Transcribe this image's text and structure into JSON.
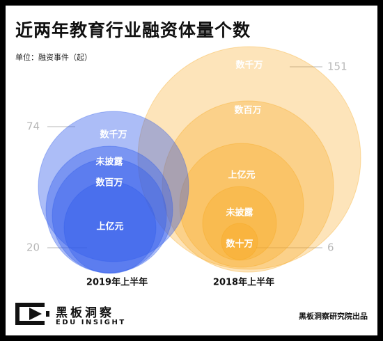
{
  "title": "近两年教育行业融资体量个数",
  "unit_label": "单位：融资事件（起）",
  "brand": {
    "name_cn": "黑板洞察",
    "name_en": "EDU INSIGHT",
    "logo_icon": "edu-insight-logo"
  },
  "source": "黑板洞察研究院出品",
  "colors": {
    "blue": "#2f5bea",
    "orange": "#f7a51b",
    "axis_label": "#b7b7b7"
  },
  "chart_data": {
    "type": "nested-bubble",
    "title": "近两年教育行业融资体量个数",
    "unit": "融资事件（起）",
    "groups": [
      {
        "name": "2019年上半年",
        "color": "#2f5bea",
        "circles": [
          {
            "label": "数千万"
          },
          {
            "label": "未披露"
          },
          {
            "label": "数百万"
          },
          {
            "label": "上亿元"
          }
        ],
        "scale_labels": [
          "74",
          "20"
        ]
      },
      {
        "name": "2018年上半年",
        "color": "#f7a51b",
        "circles": [
          {
            "label": "数千万"
          },
          {
            "label": "数百万"
          },
          {
            "label": "上亿元"
          },
          {
            "label": "未披露"
          },
          {
            "label": "数十万"
          }
        ],
        "scale_labels": [
          "151",
          "6"
        ]
      }
    ]
  }
}
